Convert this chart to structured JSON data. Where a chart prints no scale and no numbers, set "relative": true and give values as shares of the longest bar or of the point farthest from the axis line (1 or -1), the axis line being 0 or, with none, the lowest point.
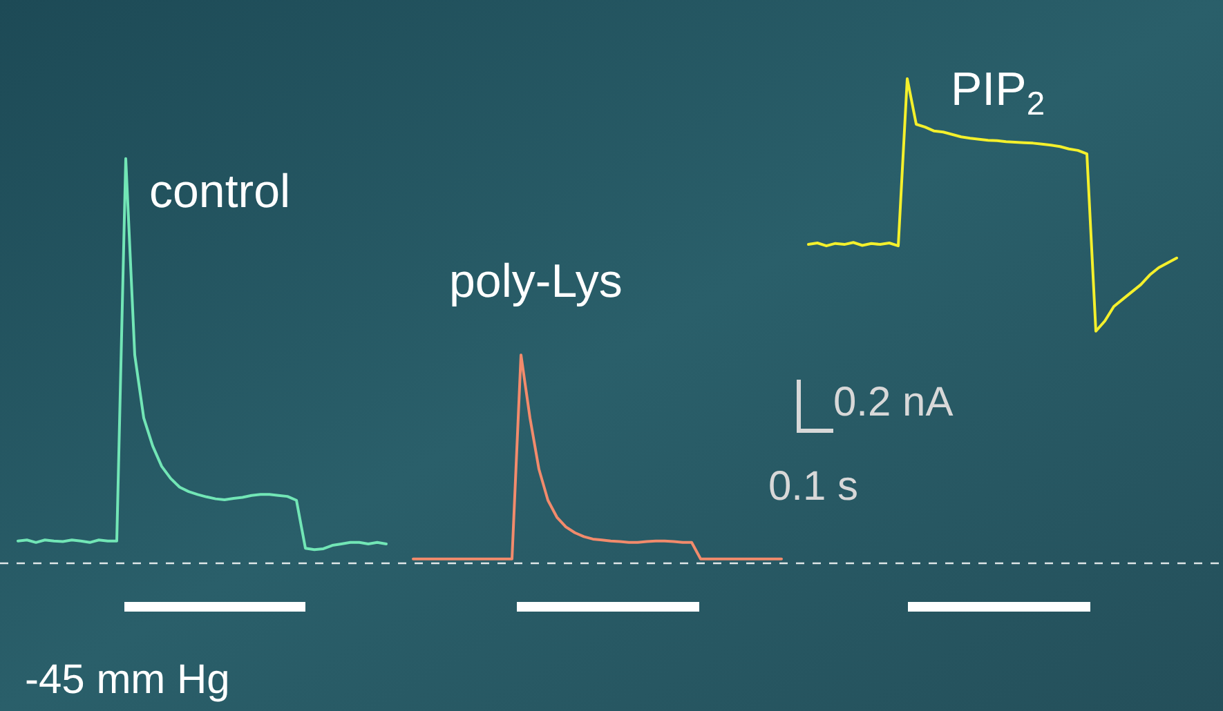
{
  "chart_data": {
    "type": "line",
    "relative": true,
    "marker": "none",
    "line_style": "solid",
    "categories": [
      null,
      null,
      null,
      null,
      null,
      null,
      null,
      null,
      null,
      null,
      null,
      null,
      null,
      null,
      null,
      null,
      null,
      null,
      null,
      null,
      null,
      null,
      null,
      null,
      null,
      null,
      null,
      null,
      null,
      null,
      null,
      null,
      null,
      null,
      null,
      null,
      null,
      null,
      null,
      null,
      null,
      null,
      null,
      null,
      null,
      null,
      null,
      null,
      null,
      null,
      null,
      null,
      null,
      null,
      null,
      null,
      null,
      null,
      null,
      null,
      null,
      null,
      null,
      null,
      null,
      null,
      null,
      null,
      null,
      null,
      null,
      null,
      null,
      null,
      null,
      null,
      null,
      null,
      null,
      null,
      null,
      null,
      null,
      null,
      null,
      null,
      null,
      null,
      null,
      null,
      null,
      null,
      null,
      null,
      null,
      null,
      null,
      null,
      null,
      null,
      null,
      null,
      null,
      null,
      null,
      null,
      null,
      null,
      null,
      null,
      null,
      null,
      null,
      null,
      null,
      null,
      null,
      null,
      null,
      null,
      null,
      null,
      null,
      null,
      null,
      null,
      null,
      null,
      null,
      null
    ],
    "series": [
      {
        "name": "control",
        "color": "#72e6b6",
        "values": [
          0.046,
          0.048,
          0.043,
          0.048,
          0.046,
          0.045,
          0.048,
          0.046,
          0.043,
          0.048,
          0.046,
          0.046,
          0.835,
          0.43,
          0.3,
          0.242,
          0.2,
          0.175,
          0.157,
          0.148,
          0.142,
          0.137,
          0.133,
          0.131,
          0.134,
          0.136,
          0.14,
          0.142,
          0.142,
          0.14,
          0.138,
          0.13,
          0.031,
          0.028,
          0.03,
          0.037,
          0.04,
          0.043,
          0.043,
          0.04,
          0.043,
          0.04,
          null,
          null,
          null,
          null,
          null,
          null,
          null,
          null,
          null,
          null,
          null,
          null,
          null,
          null,
          null,
          null,
          null,
          null,
          null,
          null,
          null,
          null,
          null,
          null,
          null,
          null,
          null,
          null,
          null,
          null,
          null,
          null,
          null,
          null,
          null,
          null,
          null,
          null,
          null,
          null,
          null,
          null,
          null,
          null,
          null,
          null,
          null,
          null,
          null,
          null,
          null,
          null,
          null,
          null,
          null,
          null,
          null,
          null,
          null,
          null,
          null,
          null,
          null,
          null,
          null,
          null,
          null,
          null,
          null,
          null,
          null,
          null,
          null,
          null,
          null,
          null,
          null,
          null,
          null,
          null,
          null,
          null,
          null,
          null,
          null,
          null,
          null,
          null
        ]
      },
      {
        "name": "poly-Lys",
        "color": "#f28b6c",
        "values": [
          null,
          null,
          null,
          null,
          null,
          null,
          null,
          null,
          null,
          null,
          null,
          null,
          null,
          null,
          null,
          null,
          null,
          null,
          null,
          null,
          null,
          null,
          null,
          null,
          null,
          null,
          null,
          null,
          null,
          null,
          null,
          null,
          null,
          null,
          null,
          null,
          null,
          null,
          null,
          null,
          null,
          null,
          null,
          null,
          0.009,
          0.009,
          0.009,
          0.009,
          0.009,
          0.009,
          0.009,
          0.009,
          0.009,
          0.009,
          0.009,
          0.009,
          0.43,
          0.3,
          0.194,
          0.13,
          0.095,
          0.075,
          0.063,
          0.055,
          0.05,
          0.048,
          0.046,
          0.045,
          0.043,
          0.043,
          0.045,
          0.046,
          0.046,
          0.045,
          0.043,
          0.043,
          0.009,
          0.009,
          0.009,
          0.009,
          0.009,
          0.009,
          0.009,
          0.009,
          0.009,
          0.009,
          null,
          null,
          null,
          null,
          null,
          null,
          null,
          null,
          null,
          null,
          null,
          null,
          null,
          null,
          null,
          null,
          null,
          null,
          null,
          null,
          null,
          null,
          null,
          null,
          null,
          null,
          null,
          null,
          null,
          null,
          null,
          null,
          null,
          null,
          null,
          null,
          null,
          null,
          null,
          null,
          null,
          null,
          null,
          null
        ]
      },
      {
        "name": "PIP$_{2}$",
        "color": "#f4f02c",
        "values": [
          null,
          null,
          null,
          null,
          null,
          null,
          null,
          null,
          null,
          null,
          null,
          null,
          null,
          null,
          null,
          null,
          null,
          null,
          null,
          null,
          null,
          null,
          null,
          null,
          null,
          null,
          null,
          null,
          null,
          null,
          null,
          null,
          null,
          null,
          null,
          null,
          null,
          null,
          null,
          null,
          null,
          null,
          null,
          null,
          null,
          null,
          null,
          null,
          null,
          null,
          null,
          null,
          null,
          null,
          null,
          null,
          null,
          null,
          null,
          null,
          null,
          null,
          null,
          null,
          null,
          null,
          null,
          null,
          null,
          null,
          null,
          null,
          null,
          null,
          null,
          null,
          null,
          null,
          null,
          null,
          null,
          null,
          null,
          null,
          null,
          null,
          null,
          null,
          0.658,
          0.661,
          0.655,
          0.66,
          0.658,
          0.662,
          0.656,
          0.66,
          0.658,
          0.661,
          0.655,
          1,
          0.906,
          0.9,
          0.892,
          0.89,
          0.885,
          0.88,
          0.877,
          0.875,
          0.873,
          0.872,
          0.87,
          0.869,
          0.868,
          0.867,
          0.865,
          0.863,
          0.86,
          0.855,
          0.852,
          0.845,
          0.479,
          0.5,
          0.53,
          0.545,
          0.56,
          0.575,
          0.595,
          0.61,
          0.62,
          0.63
        ]
      }
    ],
    "ref_lines": [
      {
        "axis": "y",
        "value": 0,
        "color": "#ffffff",
        "line_style": "dashed"
      }
    ],
    "annotations": [
      "0.2 nA",
      "0.1 s",
      "-45 mm Hg"
    ]
  }
}
